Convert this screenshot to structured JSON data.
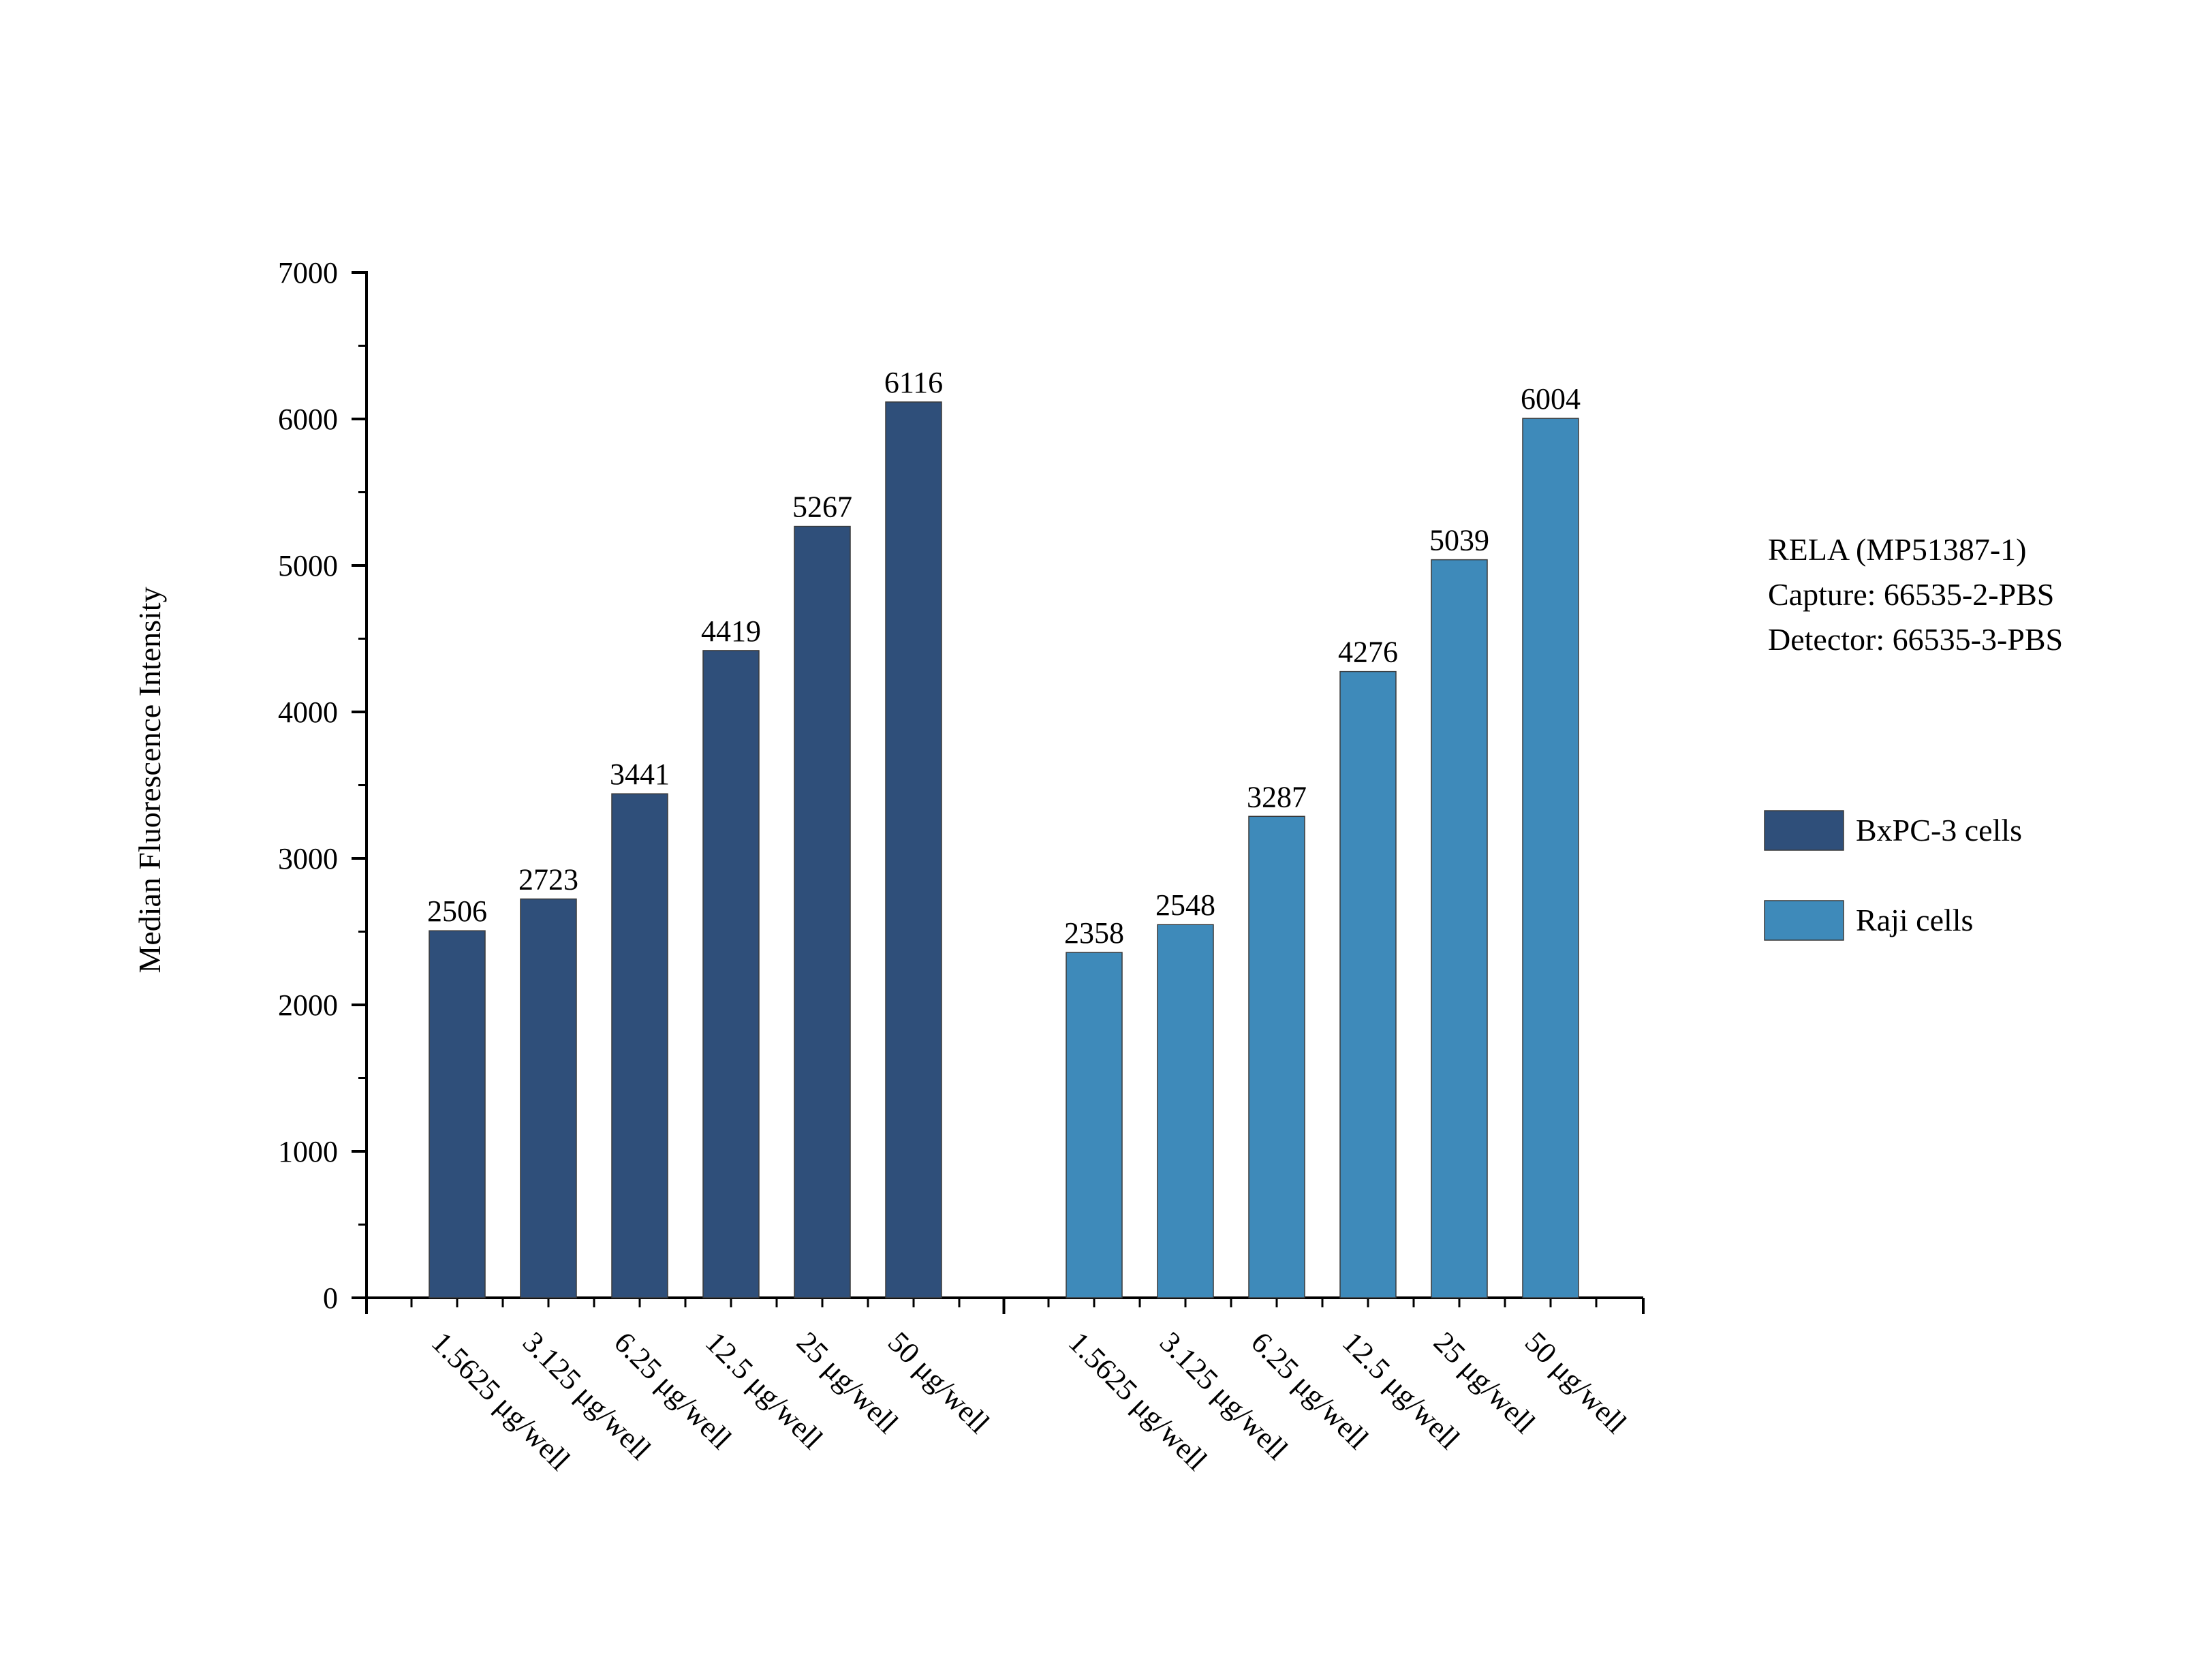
{
  "chart_data": {
    "type": "bar",
    "ylabel": "Median Fluorescence Intensity",
    "xlabel": "",
    "ylim": [
      0,
      7000
    ],
    "yticks": [
      0,
      1000,
      2000,
      3000,
      4000,
      5000,
      6000,
      7000
    ],
    "grid": false,
    "legend_position": "right",
    "annotation_lines": [
      "RELA (MP51387-1)",
      "Capture: 66535-2-PBS",
      "Detector: 66535-3-PBS"
    ],
    "groups": [
      {
        "name": "BxPC-3 cells",
        "color": "#2f4f7a",
        "categories": [
          "1.5625 μg/well",
          "3.125 μg/well",
          "6.25 μg/well",
          "12.5 μg/well",
          "25 μg/well",
          "50 μg/well"
        ],
        "values": [
          2506,
          2723,
          3441,
          4419,
          5267,
          6116
        ]
      },
      {
        "name": "Raji cells",
        "color": "#3e8aba",
        "categories": [
          "1.5625 μg/well",
          "3.125 μg/well",
          "6.25 μg/well",
          "12.5 μg/well",
          "25 μg/well",
          "50 μg/well"
        ],
        "values": [
          2358,
          2548,
          3287,
          4276,
          5039,
          6004
        ]
      }
    ]
  }
}
